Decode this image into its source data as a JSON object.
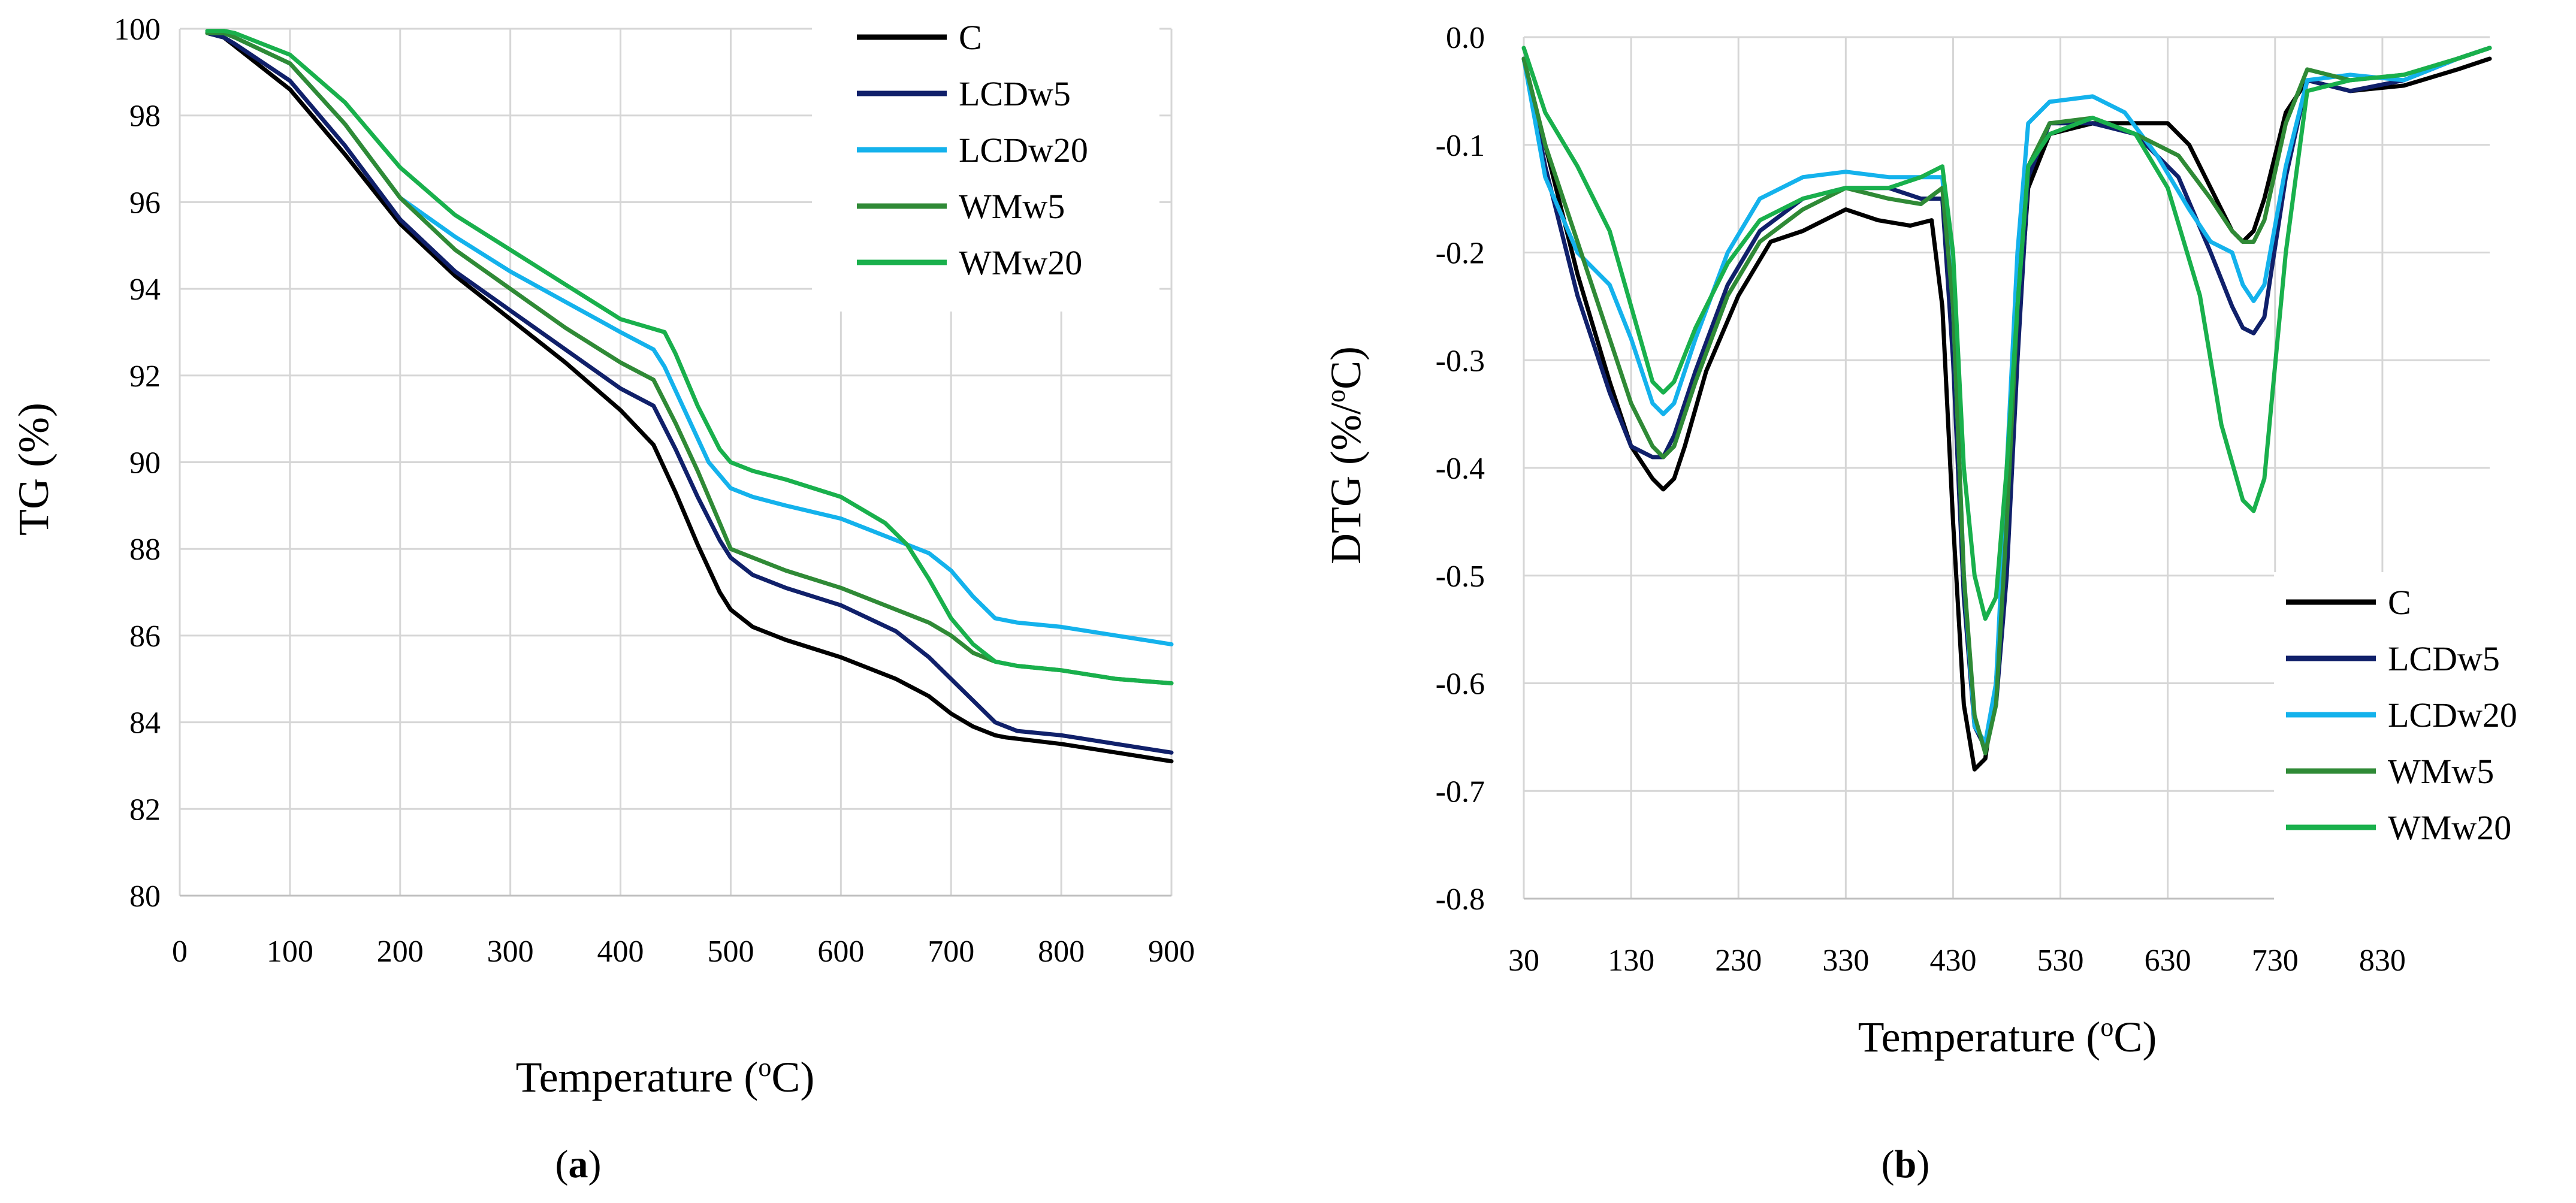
{
  "colors": {
    "C": "#000000",
    "LCDw5": "#10206a",
    "LCDw20": "#14b2ec",
    "WMw5": "#2f8a36",
    "WMw20": "#19b04c",
    "grid": "#d6d6d6"
  },
  "captions": {
    "a": "a",
    "b": "b"
  },
  "chart_data": [
    {
      "id": "a",
      "type": "line",
      "title": "",
      "xlabel": "Temperature (oC)",
      "xlabel_main": "Temperature (",
      "xlabel_sup": "o",
      "xlabel_end": "C)",
      "ylabel": "TG (%)",
      "xlim": [
        0,
        900
      ],
      "ylim": [
        80,
        100
      ],
      "xticks": [
        "0",
        "100",
        "200",
        "300",
        "400",
        "500",
        "600",
        "700",
        "800",
        "900"
      ],
      "yticks": [
        "80",
        "82",
        "84",
        "86",
        "88",
        "90",
        "92",
        "94",
        "96",
        "98",
        "100"
      ],
      "grid": true,
      "legend": "top-right",
      "series": [
        {
          "name": "C",
          "x": [
            25,
            40,
            50,
            100,
            150,
            200,
            250,
            300,
            350,
            400,
            430,
            450,
            470,
            490,
            500,
            520,
            550,
            600,
            650,
            680,
            700,
            720,
            740,
            750,
            800,
            850,
            900
          ],
          "y": [
            99.9,
            99.8,
            99.6,
            98.6,
            97.1,
            95.5,
            94.3,
            93.3,
            92.3,
            91.2,
            90.4,
            89.3,
            88.1,
            87.0,
            86.6,
            86.2,
            85.9,
            85.5,
            85.0,
            84.6,
            84.2,
            83.9,
            83.7,
            83.65,
            83.5,
            83.3,
            83.1
          ]
        },
        {
          "name": "LCDw5",
          "x": [
            25,
            40,
            50,
            100,
            150,
            200,
            250,
            300,
            350,
            400,
            430,
            450,
            470,
            490,
            500,
            520,
            550,
            600,
            650,
            680,
            700,
            720,
            740,
            760,
            800,
            850,
            900
          ],
          "y": [
            99.9,
            99.8,
            99.65,
            98.8,
            97.3,
            95.6,
            94.4,
            93.5,
            92.6,
            91.7,
            91.3,
            90.3,
            89.2,
            88.2,
            87.8,
            87.4,
            87.1,
            86.7,
            86.1,
            85.5,
            85.0,
            84.5,
            84.0,
            83.8,
            83.7,
            83.5,
            83.3
          ]
        },
        {
          "name": "LCDw20",
          "x": [
            25,
            40,
            50,
            100,
            150,
            200,
            250,
            300,
            350,
            400,
            430,
            440,
            460,
            480,
            500,
            520,
            550,
            600,
            650,
            680,
            700,
            720,
            740,
            760,
            800,
            850,
            900
          ],
          "y": [
            99.9,
            99.9,
            99.8,
            99.2,
            97.8,
            96.1,
            95.2,
            94.4,
            93.7,
            93.0,
            92.6,
            92.2,
            91.1,
            90.0,
            89.4,
            89.2,
            89.0,
            88.7,
            88.2,
            87.9,
            87.5,
            86.9,
            86.4,
            86.3,
            86.2,
            86.0,
            85.8
          ]
        },
        {
          "name": "WMw5",
          "x": [
            25,
            40,
            50,
            100,
            150,
            200,
            250,
            300,
            350,
            400,
            430,
            450,
            470,
            490,
            500,
            520,
            550,
            600,
            650,
            680,
            700,
            720,
            740,
            760,
            800,
            850,
            900
          ],
          "y": [
            99.9,
            99.9,
            99.8,
            99.2,
            97.8,
            96.1,
            94.9,
            94.0,
            93.1,
            92.3,
            91.9,
            90.9,
            89.8,
            88.6,
            88.0,
            87.8,
            87.5,
            87.1,
            86.6,
            86.3,
            86.0,
            85.6,
            85.4,
            85.3,
            85.2,
            85.0,
            84.9
          ]
        },
        {
          "name": "WMw20",
          "x": [
            25,
            40,
            50,
            100,
            150,
            200,
            250,
            300,
            350,
            400,
            440,
            450,
            470,
            490,
            500,
            520,
            550,
            600,
            640,
            660,
            680,
            700,
            720,
            740,
            760,
            800,
            850,
            900
          ],
          "y": [
            99.95,
            99.95,
            99.9,
            99.4,
            98.3,
            96.8,
            95.7,
            94.9,
            94.1,
            93.3,
            93.0,
            92.5,
            91.3,
            90.3,
            90.0,
            89.8,
            89.6,
            89.2,
            88.6,
            88.1,
            87.3,
            86.4,
            85.8,
            85.4,
            85.3,
            85.2,
            85.0,
            84.9
          ]
        }
      ]
    },
    {
      "id": "b",
      "type": "line",
      "title": "",
      "xlabel": "Temperature (oC)",
      "xlabel_main": "Temperature (",
      "xlabel_sup": "o",
      "xlabel_end": "C)",
      "ylabel": "DTG (%/oC)",
      "ylabel_main": "DTG (%/",
      "ylabel_sup": "o",
      "ylabel_end": "C)",
      "xlim": [
        30,
        930
      ],
      "ylim": [
        -0.8,
        0.0
      ],
      "xticks": [
        "30",
        "130",
        "230",
        "330",
        "430",
        "530",
        "630",
        "730",
        "830"
      ],
      "xtick_values": [
        30,
        130,
        230,
        330,
        430,
        530,
        630,
        730,
        830
      ],
      "yticks": [
        "-0.8",
        "-0.7",
        "-0.6",
        "-0.5",
        "-0.4",
        "-0.3",
        "-0.2",
        "-0.1",
        "0.0"
      ],
      "grid": true,
      "legend": "bottom-right",
      "series": [
        {
          "name": "C",
          "x": [
            30,
            50,
            80,
            110,
            130,
            150,
            160,
            170,
            180,
            200,
            230,
            260,
            290,
            330,
            360,
            390,
            410,
            420,
            430,
            440,
            450,
            460,
            470,
            480,
            490,
            500,
            520,
            560,
            600,
            630,
            650,
            670,
            690,
            700,
            710,
            720,
            740,
            760,
            800,
            850,
            900,
            930
          ],
          "y": [
            -0.02,
            -0.1,
            -0.22,
            -0.32,
            -0.38,
            -0.41,
            -0.42,
            -0.41,
            -0.38,
            -0.31,
            -0.24,
            -0.19,
            -0.18,
            -0.16,
            -0.17,
            -0.175,
            -0.17,
            -0.25,
            -0.45,
            -0.62,
            -0.68,
            -0.67,
            -0.6,
            -0.45,
            -0.28,
            -0.14,
            -0.09,
            -0.08,
            -0.08,
            -0.08,
            -0.1,
            -0.14,
            -0.18,
            -0.19,
            -0.18,
            -0.15,
            -0.07,
            -0.04,
            -0.05,
            -0.045,
            -0.03,
            -0.02
          ]
        },
        {
          "name": "LCDw5",
          "x": [
            30,
            50,
            80,
            110,
            130,
            150,
            160,
            170,
            190,
            220,
            250,
            290,
            330,
            370,
            400,
            420,
            430,
            440,
            450,
            460,
            470,
            480,
            490,
            500,
            520,
            560,
            600,
            640,
            670,
            690,
            700,
            710,
            720,
            740,
            760,
            800,
            850,
            900,
            930
          ],
          "y": [
            -0.02,
            -0.12,
            -0.24,
            -0.33,
            -0.38,
            -0.39,
            -0.39,
            -0.37,
            -0.31,
            -0.23,
            -0.18,
            -0.15,
            -0.14,
            -0.14,
            -0.15,
            -0.15,
            -0.3,
            -0.52,
            -0.64,
            -0.66,
            -0.62,
            -0.5,
            -0.3,
            -0.13,
            -0.08,
            -0.08,
            -0.09,
            -0.13,
            -0.2,
            -0.25,
            -0.27,
            -0.275,
            -0.26,
            -0.13,
            -0.04,
            -0.05,
            -0.04,
            -0.02,
            -0.01
          ]
        },
        {
          "name": "LCDw20",
          "x": [
            30,
            50,
            80,
            110,
            130,
            150,
            160,
            170,
            190,
            220,
            250,
            290,
            330,
            370,
            400,
            420,
            430,
            440,
            450,
            460,
            470,
            480,
            490,
            500,
            520,
            560,
            590,
            620,
            650,
            670,
            690,
            700,
            710,
            720,
            740,
            760,
            800,
            850,
            900,
            930
          ],
          "y": [
            -0.02,
            -0.13,
            -0.2,
            -0.23,
            -0.28,
            -0.34,
            -0.35,
            -0.34,
            -0.28,
            -0.2,
            -0.15,
            -0.13,
            -0.125,
            -0.13,
            -0.13,
            -0.13,
            -0.25,
            -0.5,
            -0.64,
            -0.655,
            -0.6,
            -0.4,
            -0.2,
            -0.08,
            -0.06,
            -0.055,
            -0.07,
            -0.11,
            -0.16,
            -0.19,
            -0.2,
            -0.23,
            -0.245,
            -0.23,
            -0.12,
            -0.04,
            -0.035,
            -0.04,
            -0.02,
            -0.01
          ]
        },
        {
          "name": "WMw5",
          "x": [
            30,
            50,
            80,
            110,
            130,
            150,
            160,
            170,
            190,
            220,
            250,
            290,
            330,
            370,
            400,
            420,
            430,
            440,
            450,
            460,
            470,
            480,
            490,
            500,
            520,
            560,
            600,
            640,
            670,
            690,
            700,
            710,
            720,
            740,
            760,
            800,
            850,
            900,
            930
          ],
          "y": [
            -0.02,
            -0.1,
            -0.19,
            -0.28,
            -0.34,
            -0.38,
            -0.39,
            -0.38,
            -0.32,
            -0.24,
            -0.19,
            -0.16,
            -0.14,
            -0.15,
            -0.155,
            -0.14,
            -0.25,
            -0.5,
            -0.63,
            -0.665,
            -0.62,
            -0.45,
            -0.25,
            -0.12,
            -0.08,
            -0.075,
            -0.09,
            -0.11,
            -0.15,
            -0.18,
            -0.19,
            -0.19,
            -0.17,
            -0.08,
            -0.03,
            -0.04,
            -0.035,
            -0.02,
            -0.01
          ]
        },
        {
          "name": "WMw20",
          "x": [
            30,
            50,
            80,
            110,
            130,
            150,
            160,
            170,
            190,
            220,
            250,
            290,
            330,
            370,
            400,
            420,
            430,
            440,
            450,
            460,
            470,
            480,
            490,
            500,
            520,
            560,
            600,
            630,
            660,
            680,
            700,
            710,
            720,
            740,
            760,
            800,
            850,
            900,
            930
          ],
          "y": [
            -0.01,
            -0.07,
            -0.12,
            -0.18,
            -0.25,
            -0.32,
            -0.33,
            -0.32,
            -0.27,
            -0.21,
            -0.17,
            -0.15,
            -0.14,
            -0.14,
            -0.13,
            -0.12,
            -0.2,
            -0.4,
            -0.5,
            -0.54,
            -0.52,
            -0.4,
            -0.25,
            -0.12,
            -0.09,
            -0.075,
            -0.09,
            -0.14,
            -0.24,
            -0.36,
            -0.43,
            -0.44,
            -0.41,
            -0.2,
            -0.05,
            -0.04,
            -0.035,
            -0.02,
            -0.01
          ]
        }
      ]
    }
  ]
}
